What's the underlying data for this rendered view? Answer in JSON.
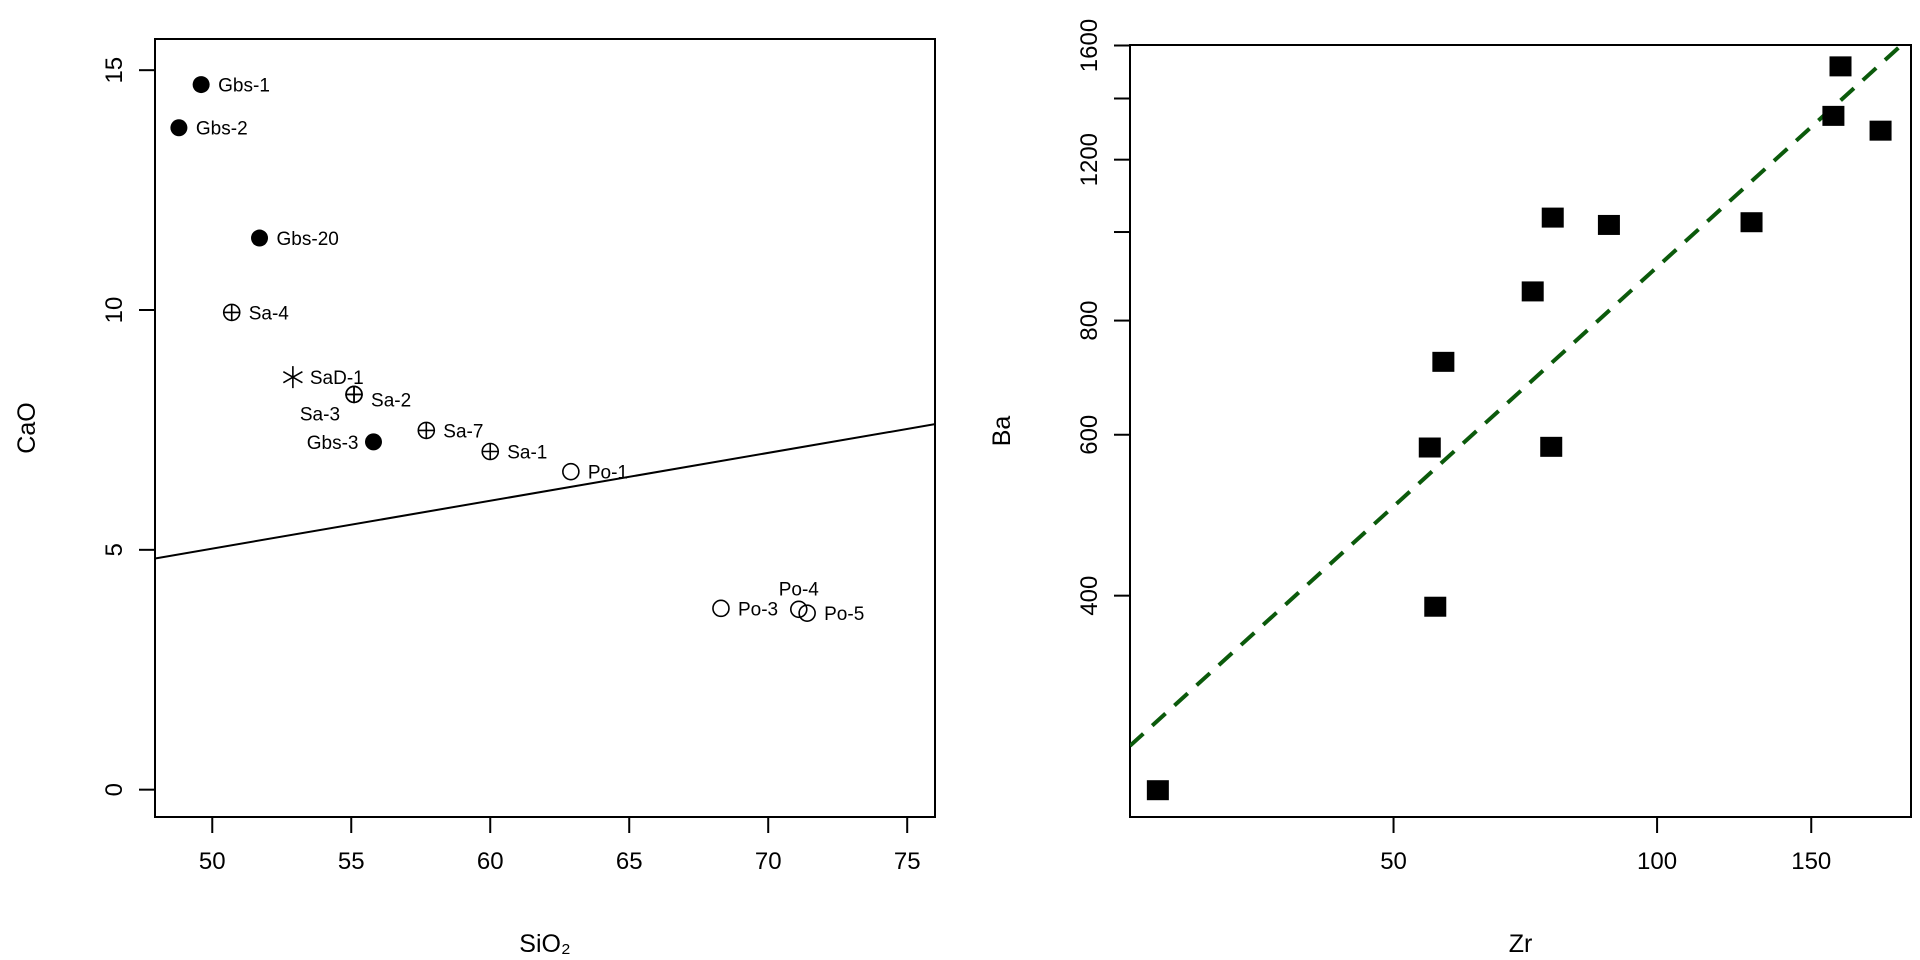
{
  "chart_data": [
    {
      "type": "scatter",
      "title": "",
      "xlabel": "SiO₂",
      "ylabel": "CaO",
      "xlim": [
        47.94,
        76.0
      ],
      "ylim": [
        -0.57,
        15.65
      ],
      "xticks": [
        50,
        55,
        60,
        65,
        70,
        75
      ],
      "yticks": [
        0,
        5,
        10,
        15
      ],
      "grid": false,
      "points": [
        {
          "label": "Gbs-1",
          "x": 49.6,
          "y": 14.7,
          "marker": "filled-circle"
        },
        {
          "label": "Gbs-2",
          "x": 48.8,
          "y": 13.8,
          "marker": "filled-circle"
        },
        {
          "label": "Gbs-20",
          "x": 51.7,
          "y": 11.5,
          "marker": "filled-circle"
        },
        {
          "label": "Sa-4",
          "x": 50.7,
          "y": 9.95,
          "marker": "crossed-circle"
        },
        {
          "label": "SaD-1",
          "x": 52.9,
          "y": 8.6,
          "marker": "asterisk"
        },
        {
          "label": "Sa-2",
          "x": 55.1,
          "y": 8.24,
          "marker": "crossed-circle"
        },
        {
          "label": "Sa-3",
          "x": 55.1,
          "y": 8.24,
          "marker": "crossed-circle"
        },
        {
          "label": "Gbs-3",
          "x": 55.8,
          "y": 7.25,
          "marker": "filled-circle"
        },
        {
          "label": "Sa-7",
          "x": 57.7,
          "y": 7.49,
          "marker": "crossed-circle"
        },
        {
          "label": "Sa-1",
          "x": 60.0,
          "y": 7.05,
          "marker": "crossed-circle"
        },
        {
          "label": "Po-1",
          "x": 62.9,
          "y": 6.63,
          "marker": "open-circle"
        },
        {
          "label": "Po-3",
          "x": 68.3,
          "y": 3.78,
          "marker": "open-circle"
        },
        {
          "label": "Po-4",
          "x": 71.1,
          "y": 3.76,
          "marker": "open-circle"
        },
        {
          "label": "Po-5",
          "x": 71.4,
          "y": 3.68,
          "marker": "open-circle"
        }
      ],
      "line": {
        "x": [
          47.94,
          76.0
        ],
        "y": [
          4.82,
          7.62
        ],
        "color": "#000000",
        "style": "solid"
      }
    },
    {
      "type": "scatter",
      "title": "",
      "xlabel": "Zr",
      "ylabel": "Ba",
      "xscale": "log",
      "yscale": "log",
      "xlim": [
        25,
        195
      ],
      "ylim": [
        229,
        1602
      ],
      "xticks": [
        50,
        100,
        150
      ],
      "yticks": [
        400,
        600,
        800,
        1200,
        1600
      ],
      "yticks_minor": [
        1000,
        1400
      ],
      "grid": false,
      "marker": "filled-square",
      "points": [
        {
          "x": 26.9,
          "y": 245
        },
        {
          "x": 55.0,
          "y": 581
        },
        {
          "x": 55.8,
          "y": 389
        },
        {
          "x": 57.0,
          "y": 721
        },
        {
          "x": 72.1,
          "y": 861
        },
        {
          "x": 75.7,
          "y": 582
        },
        {
          "x": 76.0,
          "y": 1037
        },
        {
          "x": 88.1,
          "y": 1018
        },
        {
          "x": 128.2,
          "y": 1025
        },
        {
          "x": 159,
          "y": 1340
        },
        {
          "x": 162,
          "y": 1518
        },
        {
          "x": 180,
          "y": 1291
        }
      ],
      "line": {
        "x": [
          25,
          195
        ],
        "y": [
          274,
          1637
        ],
        "color": "#0b5a0b",
        "style": "dashed"
      }
    }
  ]
}
